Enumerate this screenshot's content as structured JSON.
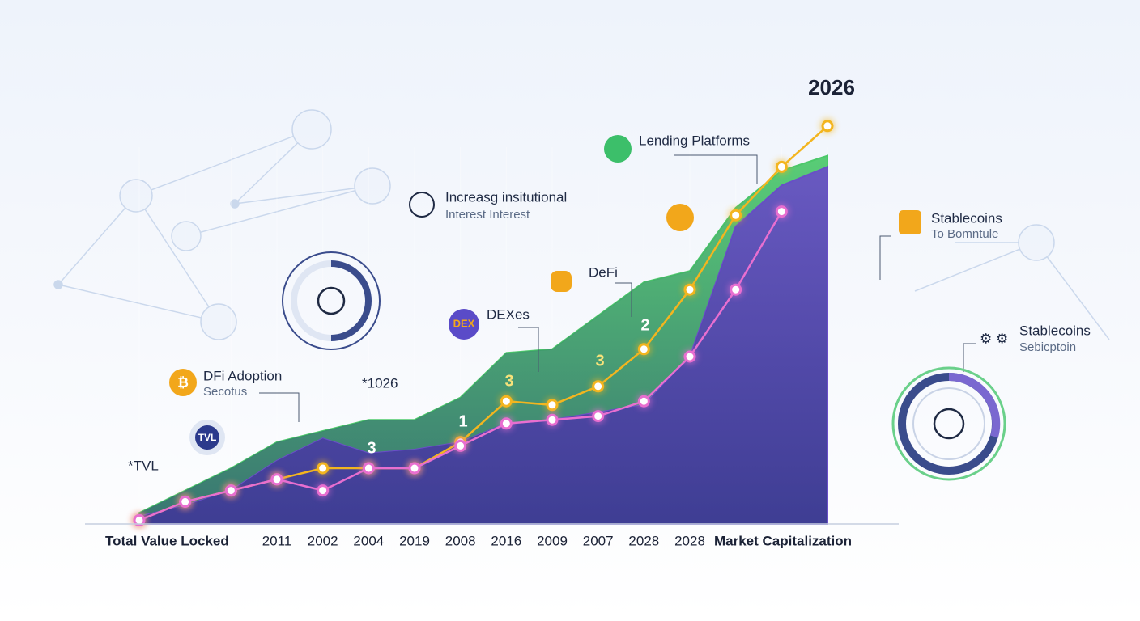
{
  "chart_data": {
    "type": "area",
    "title": "2026",
    "x_label_left": "Total Value Locked",
    "x_label_right": "Market Capitalization",
    "categories": [
      null,
      null,
      null,
      "2011",
      "2002",
      "2004",
      "2019",
      "2008",
      "2016",
      "2009",
      "2007",
      "2028",
      "2028",
      null,
      null,
      null
    ],
    "ylim": [
      0,
      110
    ],
    "series": [
      {
        "kind": "area",
        "color": "#4cc96a",
        "values": [
          3,
          9,
          15,
          22,
          25,
          28,
          28,
          34,
          46,
          47,
          56,
          65,
          68,
          85,
          95,
          99
        ]
      },
      {
        "kind": "area",
        "color": "#6a4fc8",
        "values": [
          2,
          5,
          9,
          17,
          23,
          19,
          20,
          22,
          27,
          28,
          30,
          32,
          45,
          80,
          91,
          96
        ]
      },
      {
        "kind": "line",
        "color": "#f3b51f",
        "values": [
          1,
          6,
          9,
          12,
          15,
          15,
          15,
          22,
          33,
          32,
          37,
          47,
          63,
          83,
          96,
          107
        ]
      },
      {
        "kind": "line",
        "color": "#e86fd0",
        "values": [
          1,
          6,
          9,
          12,
          9,
          15,
          15,
          21,
          27,
          28,
          29,
          33,
          45,
          63,
          84,
          null
        ]
      }
    ],
    "point_labels": [
      "3",
      "1",
      "3",
      "3",
      "2"
    ],
    "annotations": [
      "Lending Platforms",
      "Increasg insitutional",
      "Interest Interest",
      "DeFi",
      "DEXes",
      "DEX",
      "DFi Adoption",
      "Secotus",
      "*1026",
      "*TVL",
      "TVL",
      "Stablecoins",
      "To Bomntule",
      "Stablecoins",
      "Sebicptoin",
      "₿"
    ]
  }
}
